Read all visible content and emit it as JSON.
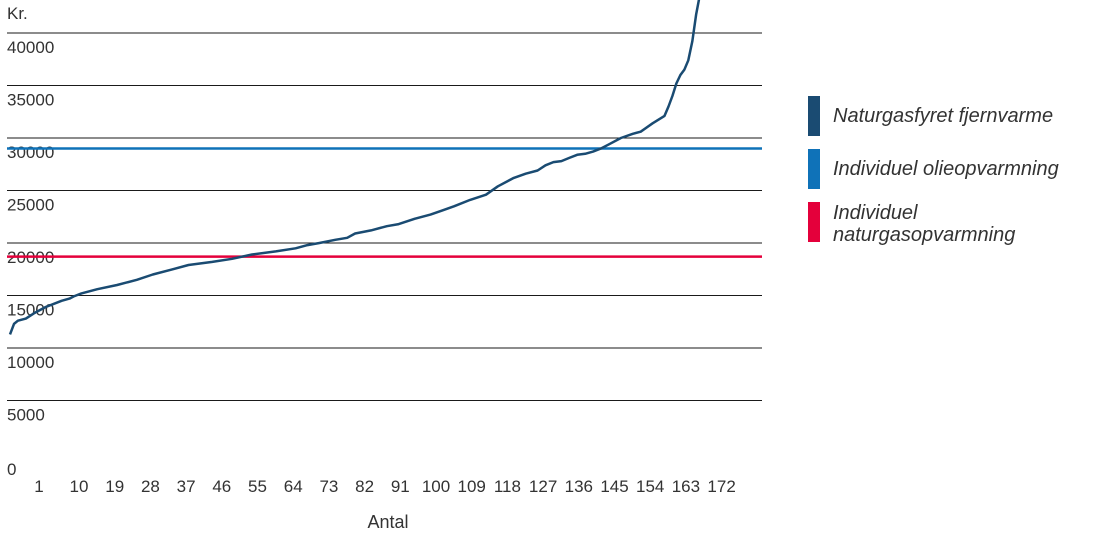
{
  "chart_data": {
    "type": "line",
    "title": "",
    "ylabel": "Kr.",
    "xlabel": "Antal",
    "ylim": [
      0,
      40000
    ],
    "y_ticks": [
      0,
      5000,
      10000,
      15000,
      20000,
      25000,
      30000,
      35000,
      40000
    ],
    "y_tick_labels": [
      "0",
      "5000",
      "10000",
      "15000",
      "20000",
      "25000",
      "30000",
      "35000",
      "40000"
    ],
    "x_range": [
      1,
      176
    ],
    "x_ticks": [
      1,
      10,
      19,
      28,
      37,
      46,
      55,
      64,
      73,
      82,
      91,
      100,
      109,
      118,
      127,
      136,
      145,
      154,
      163,
      172
    ],
    "x_tick_labels": [
      "1",
      "10",
      "19",
      "28",
      "37",
      "46",
      "55",
      "64",
      "73",
      "82",
      "91",
      "100",
      "109",
      "118",
      "127",
      "136",
      "145",
      "154",
      "163",
      "172"
    ],
    "grid": "horizontal",
    "legend_position": "right",
    "series": [
      {
        "name": "Naturgasfyret fjernvarme",
        "color": "#1a4b72",
        "x": [
          1,
          2,
          3,
          5,
          7,
          9,
          10,
          12,
          14,
          16,
          17,
          19,
          23,
          28,
          33,
          37,
          42,
          46,
          52,
          57,
          62,
          68,
          73,
          76,
          79,
          83,
          86,
          88,
          92,
          96,
          99,
          103,
          107,
          110,
          113,
          117,
          121,
          124,
          128,
          131,
          134,
          136,
          138,
          140,
          142,
          144,
          146,
          148,
          150,
          152,
          155,
          158,
          160,
          163,
          166,
          167,
          168,
          169,
          170,
          171,
          172,
          173,
          174,
          175
        ],
        "y": [
          11300,
          12300,
          12600,
          12800,
          13300,
          13700,
          13900,
          14200,
          14500,
          14700,
          14900,
          15200,
          15600,
          16000,
          16500,
          17000,
          17500,
          17900,
          18200,
          18500,
          18900,
          19200,
          19500,
          19800,
          20000,
          20300,
          20500,
          20900,
          21200,
          21600,
          21800,
          22300,
          22700,
          23100,
          23500,
          24100,
          24600,
          25400,
          26200,
          26600,
          26900,
          27400,
          27700,
          27800,
          28100,
          28400,
          28500,
          28700,
          29000,
          29400,
          30000,
          30400,
          30600,
          31400,
          32100,
          33000,
          34000,
          35200,
          36000,
          36500,
          37400,
          39200,
          41800,
          43800
        ]
      },
      {
        "name": "Individuel olieopvarmning",
        "color": "#0f72b8",
        "value": 29000
      },
      {
        "name": "Individuel naturgasopvarmning",
        "color": "#e4003b",
        "value": 18700
      }
    ]
  },
  "legend": {
    "items": [
      {
        "label": "Naturgasfyret fjernvarme",
        "color": "#1a4b72"
      },
      {
        "label": "Individuel olieopvarmning",
        "color": "#0f72b8"
      },
      {
        "label": "Individuel naturgasopvarmning",
        "color": "#e4003b"
      }
    ]
  }
}
